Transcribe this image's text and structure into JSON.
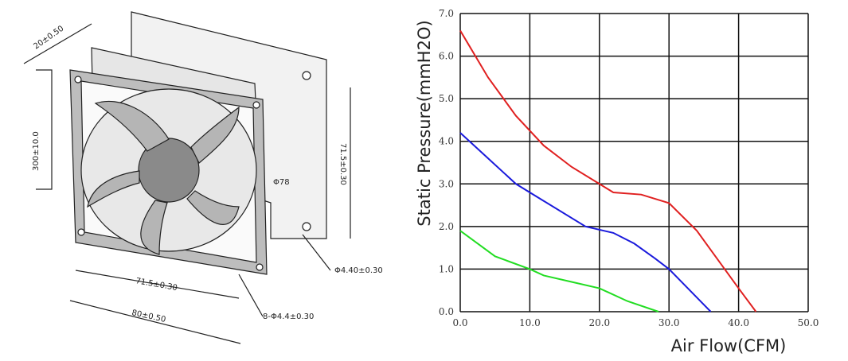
{
  "chart_data": {
    "type": "line",
    "xlabel": "Air Flow(CFM)",
    "ylabel": "Static Pressure(mmH2O)",
    "xlim": [
      0,
      50
    ],
    "ylim": [
      0,
      7
    ],
    "xticks": [
      {
        "value": 0,
        "label": "0.0"
      },
      {
        "value": 10,
        "label": "10.0"
      },
      {
        "value": 20,
        "label": "20.0"
      },
      {
        "value": 30,
        "label": "30.0"
      },
      {
        "value": 40,
        "label": "40.0"
      },
      {
        "value": 50,
        "label": "50.0"
      }
    ],
    "yticks": [
      {
        "value": 0,
        "label": "0.0"
      },
      {
        "value": 1,
        "label": "1.0"
      },
      {
        "value": 2,
        "label": "2.0"
      },
      {
        "value": 3,
        "label": "3.0"
      },
      {
        "value": 4,
        "label": "4.0"
      },
      {
        "value": 5,
        "label": "5.0"
      },
      {
        "value": 6,
        "label": "6.0"
      },
      {
        "value": 7,
        "label": "7.0"
      }
    ],
    "grid": true,
    "series": [
      {
        "color": "#e02020",
        "x": [
          0,
          4,
          8,
          12,
          16,
          20,
          22,
          26,
          30,
          34,
          38,
          40,
          42.5
        ],
        "values": [
          6.6,
          5.5,
          4.6,
          3.9,
          3.4,
          3.0,
          2.8,
          2.75,
          2.55,
          1.9,
          1.0,
          0.55,
          0
        ]
      },
      {
        "color": "#1a1adc",
        "x": [
          0,
          4,
          8,
          12,
          18,
          22,
          25,
          28,
          30,
          33,
          36
        ],
        "values": [
          4.2,
          3.6,
          3.0,
          2.6,
          2.0,
          1.85,
          1.6,
          1.25,
          1.0,
          0.5,
          0
        ]
      },
      {
        "color": "#22dd22",
        "x": [
          0,
          5,
          10,
          12,
          16,
          20,
          24,
          28.5
        ],
        "values": [
          1.9,
          1.3,
          1.0,
          0.85,
          0.7,
          0.55,
          0.25,
          0
        ]
      }
    ]
  },
  "drawing": {
    "labels": [
      "20±0.50",
      "300±10.0",
      "71.5±0.30",
      "Φ78",
      "Φ4.40±0.30",
      "71.5±0.30",
      "8-Φ4.4±0.30",
      "80±0.50"
    ]
  }
}
